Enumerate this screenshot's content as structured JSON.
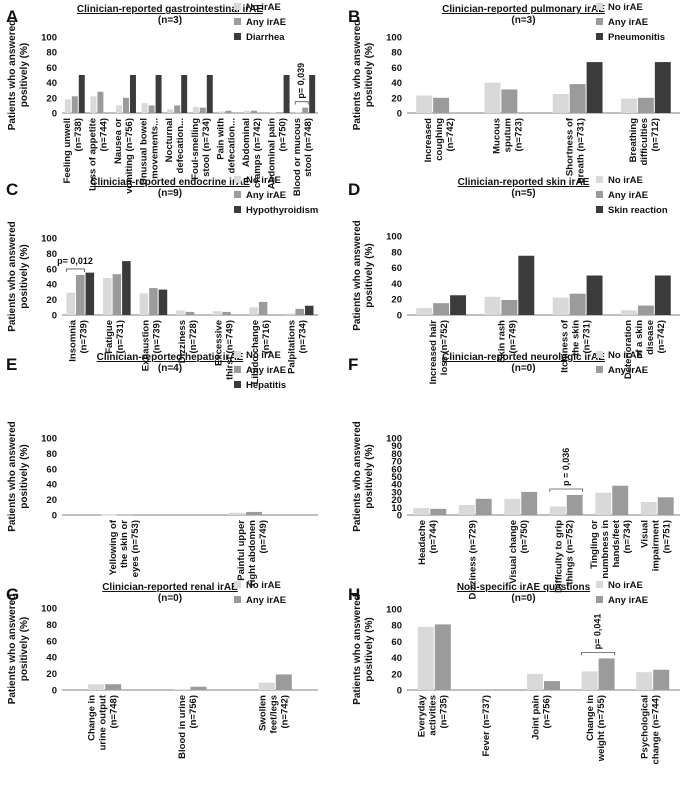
{
  "colors": {
    "no_irae": "#d9d9d9",
    "any_irae": "#9b9b9b",
    "specific": "#3b3b3b",
    "axis": "#808080",
    "text": "#111111"
  },
  "y_axis_label": "Patients who answered positively (%)",
  "chart_data": [
    {
      "panel_letter": "A",
      "type": "bar",
      "title": "Clinician-reported gastrointestinal irAE",
      "subtitle": "(n=3)",
      "ylim": [
        0,
        100
      ],
      "yticks": [
        0,
        20,
        40,
        60,
        80,
        100
      ],
      "legend": "top-right",
      "categories": [
        [
          "Feeling unwell",
          "(n=738)"
        ],
        [
          "Loss of appetite",
          "(n=744)"
        ],
        [
          "Nausea or",
          "vomiting (n=756)"
        ],
        [
          "Unusual bowel",
          "movements..."
        ],
        [
          "Nocturnal",
          "defecation..."
        ],
        [
          "Foul-smelling",
          "stool (n=734)"
        ],
        [
          "Pain with",
          "defecation..."
        ],
        [
          "Abdominal",
          "cramps (n=742)"
        ],
        [
          "Abdominal pain",
          "(n=750)"
        ],
        [
          "Blood or mucous",
          "stool (n=748)"
        ]
      ],
      "series": [
        {
          "name": "No irAE",
          "values": [
            18,
            22,
            10,
            13,
            5,
            8,
            2,
            3,
            1,
            1
          ]
        },
        {
          "name": "Any irAE",
          "values": [
            22,
            28,
            20,
            10,
            10,
            7,
            3,
            3,
            1,
            7
          ]
        },
        {
          "name": "Diarrhea",
          "values": [
            50,
            0,
            50,
            50,
            50,
            50,
            0,
            0,
            50,
            50
          ]
        }
      ],
      "annotations": [
        {
          "text": "p= 0,039",
          "category": 9
        }
      ]
    },
    {
      "panel_letter": "B",
      "type": "bar",
      "title": "Clinician-reported pulmonary irAE",
      "subtitle": "(n=3)",
      "ylim": [
        0,
        100
      ],
      "yticks": [
        0,
        20,
        40,
        60,
        80,
        100
      ],
      "legend": "top-right",
      "categories": [
        [
          "Increased",
          "coughing",
          "(n=742)"
        ],
        [
          "Mucous",
          "sputum",
          "(n=723)"
        ],
        [
          "Shortness of",
          "breath (n=731)"
        ],
        [
          "Breathing",
          "difficulties",
          "(n=712)"
        ]
      ],
      "series": [
        {
          "name": "No irAE",
          "values": [
            23,
            40,
            25,
            19
          ]
        },
        {
          "name": "Any irAE",
          "values": [
            20,
            31,
            38,
            20
          ]
        },
        {
          "name": "Pneumonitis",
          "values": [
            0,
            0,
            67,
            67
          ]
        }
      ],
      "annotations": []
    },
    {
      "panel_letter": "C",
      "type": "bar",
      "title": "Clinician-reported endocrine irAE",
      "subtitle": "(n=9)",
      "ylim": [
        0,
        100
      ],
      "yticks": [
        0,
        20,
        40,
        60,
        80,
        100
      ],
      "legend": "top-right",
      "categories": [
        [
          "Insomnia",
          "(n=739)"
        ],
        [
          "Fatigue",
          "(n=731)"
        ],
        [
          "Exhaustion",
          "(n=739)"
        ],
        [
          "Dizziness",
          "(n=728)"
        ],
        [
          "Excessive",
          "thirst (n=749)"
        ],
        [
          "Libido change",
          "(n=716)"
        ],
        [
          "Palpitations",
          "(n=734)"
        ]
      ],
      "series": [
        {
          "name": "No irAE",
          "values": [
            29,
            48,
            28,
            6,
            5,
            10,
            2
          ]
        },
        {
          "name": "Any irAE",
          "values": [
            52,
            53,
            35,
            4,
            4,
            17,
            8
          ]
        },
        {
          "name": "Hypothyroidism",
          "values": [
            55,
            70,
            33,
            0,
            0,
            0,
            12
          ]
        }
      ],
      "annotations": [
        {
          "text": "p= 0,012",
          "category": 0
        }
      ]
    },
    {
      "panel_letter": "D",
      "type": "bar",
      "title": "Clinician-reported skin irAE",
      "subtitle": "(n=5)",
      "ylim": [
        0,
        100
      ],
      "yticks": [
        0,
        20,
        40,
        60,
        80,
        100
      ],
      "legend": "top-right",
      "categories": [
        [
          "Increased hair",
          "loss (n=752)"
        ],
        [
          "Skin rash",
          "(n=749)"
        ],
        [
          "Itchiness of",
          "the skin",
          "(n=731)"
        ],
        [
          "Deterioration",
          "of a skin",
          "disease",
          "(n=742)"
        ]
      ],
      "series": [
        {
          "name": "No irAE",
          "values": [
            9,
            23,
            22,
            6
          ]
        },
        {
          "name": "Any irAE",
          "values": [
            15,
            19,
            27,
            12
          ]
        },
        {
          "name": "Skin reaction",
          "values": [
            25,
            75,
            50,
            50
          ]
        }
      ],
      "annotations": []
    },
    {
      "panel_letter": "E",
      "type": "bar",
      "title": "Clinician-reported hepatic irAE",
      "subtitle": "(n=4)",
      "ylim": [
        0,
        100
      ],
      "yticks": [
        0,
        20,
        40,
        60,
        80,
        100
      ],
      "legend": "top-right",
      "categories": [
        [
          "Yellowing of",
          "the skin or",
          "eyes (n=753)"
        ],
        [
          "Painful upper",
          "right abdomen",
          "(n=749)"
        ]
      ],
      "series": [
        {
          "name": "No irAE",
          "values": [
            0.5,
            3
          ]
        },
        {
          "name": "Any irAE",
          "values": [
            0.5,
            4
          ]
        },
        {
          "name": "Hepatitis",
          "values": [
            0,
            0
          ]
        }
      ],
      "annotations": []
    },
    {
      "panel_letter": "F",
      "type": "bar",
      "title": "Clinician-reported neurologic irAE",
      "subtitle": "(n=0)",
      "ylim": [
        0,
        100
      ],
      "yticks": [
        0,
        10,
        20,
        30,
        40,
        50,
        60,
        70,
        80,
        90,
        100
      ],
      "legend": "top-right",
      "categories": [
        [
          "Headache",
          "(n=744)"
        ],
        [
          "Dizziness (n=729)"
        ],
        [
          "Visual change",
          "(n=750)"
        ],
        [
          "Difficulty to grip",
          "things (n=752)"
        ],
        [
          "Tingling or",
          "numbness in",
          "hands/feet",
          "(n=734)"
        ],
        [
          "Visual",
          "impairment",
          "(n=751)"
        ]
      ],
      "series": [
        {
          "name": "No irAE",
          "values": [
            9,
            13,
            21,
            11,
            29,
            17
          ]
        },
        {
          "name": "Any irAE",
          "values": [
            8,
            21,
            30,
            26,
            38,
            23
          ]
        }
      ],
      "annotations": [
        {
          "text": "p = 0,036",
          "category": 3
        }
      ]
    },
    {
      "panel_letter": "G",
      "type": "bar",
      "title": "Clinician-reported renal irAE",
      "subtitle": "(n=0)",
      "ylim": [
        0,
        100
      ],
      "yticks": [
        0,
        20,
        40,
        60,
        80,
        100
      ],
      "legend": "top-right",
      "categories": [
        [
          "Change in",
          "urine output",
          "(n=748)"
        ],
        [
          "Blood in urine",
          "(n=756)"
        ],
        [
          "Swollen",
          "feet/legs",
          "(n=742)"
        ]
      ],
      "series": [
        {
          "name": "No irAE",
          "values": [
            7,
            1,
            9
          ]
        },
        {
          "name": "Any irAE",
          "values": [
            7,
            4,
            19
          ]
        }
      ],
      "annotations": []
    },
    {
      "panel_letter": "H",
      "type": "bar",
      "title": "Non-specific irAE questions",
      "subtitle": "(n=0)",
      "ylim": [
        0,
        100
      ],
      "yticks": [
        0,
        20,
        40,
        60,
        80,
        100
      ],
      "legend": "top-right",
      "categories": [
        [
          "Everyday",
          "activities",
          "(n=735)"
        ],
        [
          "Fever (n=737)"
        ],
        [
          "Joint pain",
          "(n=756)"
        ],
        [
          "Change in",
          "weight (n=755)"
        ],
        [
          "Psychological",
          "change (n=744)"
        ]
      ],
      "series": [
        {
          "name": "No irAE",
          "values": [
            78,
            0,
            20,
            23,
            22
          ]
        },
        {
          "name": "Any irAE",
          "values": [
            81,
            0,
            11,
            39,
            25
          ]
        }
      ],
      "annotations": [
        {
          "text": "p= 0,041",
          "category": 3
        }
      ]
    }
  ]
}
